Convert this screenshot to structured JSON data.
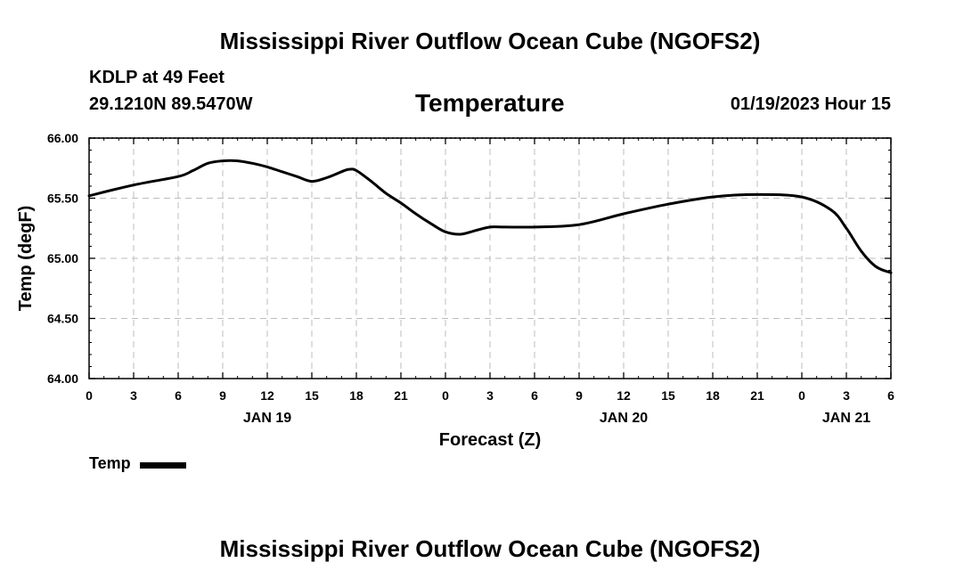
{
  "header": {
    "main_title": "Mississippi River Outflow Ocean Cube (NGOFS2)",
    "station": "KDLP at 49 Feet",
    "coordinates": "29.1210N  89.5470W",
    "timestamp": "01/19/2023 Hour 15"
  },
  "footer": {
    "repeat_title": "Mississippi River Outflow Ocean Cube (NGOFS2)"
  },
  "chart_data": {
    "type": "line",
    "title": "Temperature",
    "xlabel": "Forecast (Z)",
    "ylabel": "Temp (degF)",
    "ylim": [
      64.0,
      66.0
    ],
    "xlim": [
      0,
      54
    ],
    "grid": true,
    "yticks": [
      64.0,
      64.5,
      65.0,
      65.5,
      66.0
    ],
    "ytick_labels": [
      "64.00",
      "64.50",
      "65.00",
      "65.50",
      "66.00"
    ],
    "xticks": [
      0,
      3,
      6,
      9,
      12,
      15,
      18,
      21,
      24,
      27,
      30,
      33,
      36,
      39,
      42,
      45,
      48,
      51,
      54
    ],
    "xtick_labels": [
      "0",
      "3",
      "6",
      "9",
      "12",
      "15",
      "18",
      "21",
      "0",
      "3",
      "6",
      "9",
      "12",
      "15",
      "18",
      "21",
      "0",
      "3",
      "6"
    ],
    "day_labels": [
      {
        "label": "JAN 19",
        "hour": 12
      },
      {
        "label": "JAN 20",
        "hour": 36
      },
      {
        "label": "JAN 21",
        "hour": 51
      }
    ],
    "legend": [
      {
        "name": "Temp",
        "position": "bottom-left"
      }
    ],
    "series": [
      {
        "name": "Temp",
        "x": [
          0,
          3,
          6,
          7,
          8,
          9,
          10,
          11,
          12,
          13,
          14,
          15,
          16,
          17,
          17.5,
          18,
          19,
          20,
          21,
          22,
          23,
          24,
          25,
          26,
          27,
          28,
          30,
          33,
          36,
          39,
          42,
          45,
          48,
          50,
          51,
          52,
          53,
          54
        ],
        "values": [
          65.52,
          65.61,
          65.68,
          65.73,
          65.79,
          65.81,
          65.81,
          65.79,
          65.76,
          65.72,
          65.68,
          65.64,
          65.67,
          65.72,
          65.74,
          65.73,
          65.64,
          65.54,
          65.46,
          65.37,
          65.29,
          65.22,
          65.2,
          65.23,
          65.26,
          65.26,
          65.26,
          65.28,
          65.37,
          65.45,
          65.51,
          65.53,
          65.51,
          65.4,
          65.25,
          65.06,
          64.93,
          64.88
        ]
      }
    ]
  }
}
